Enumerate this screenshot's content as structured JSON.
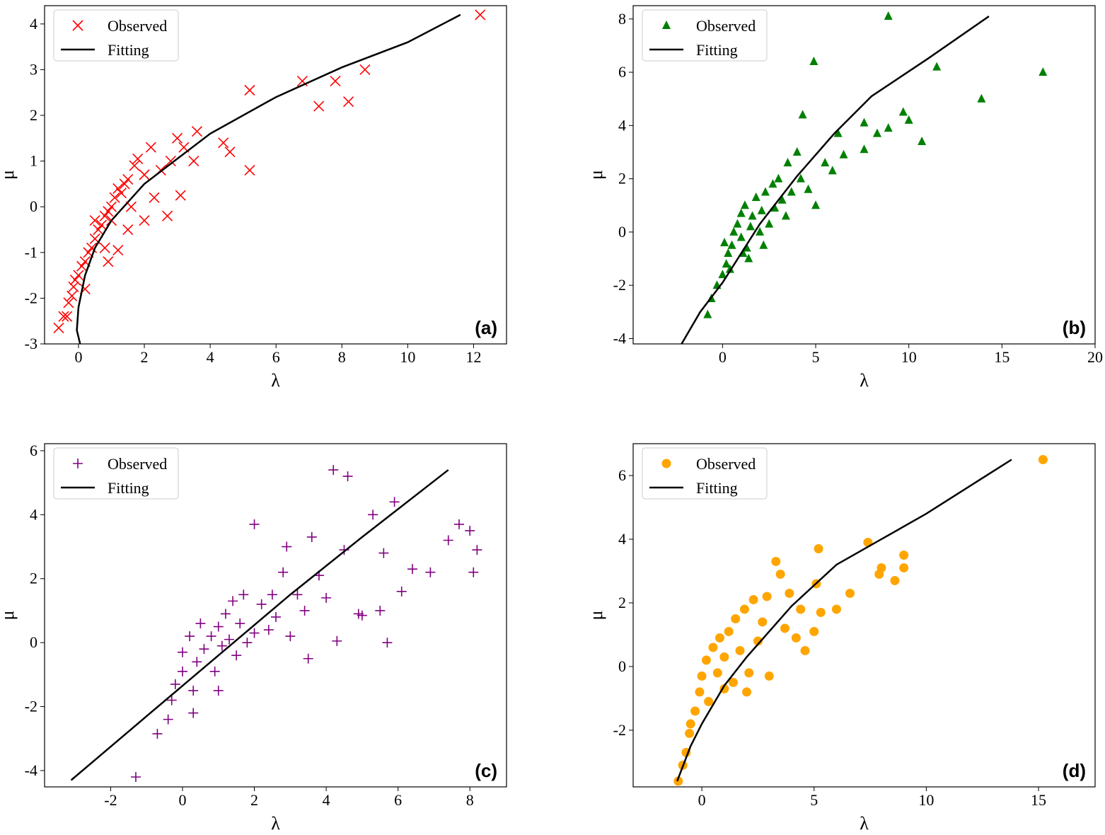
{
  "chart_data": [
    {
      "type": "scatter",
      "panel_label": "(a)",
      "xlabel": "λ",
      "ylabel": "μ",
      "xlim": [
        -1.03,
        13.0
      ],
      "ylim": [
        -3.0,
        4.4
      ],
      "xticks": [
        0,
        2,
        4,
        6,
        8,
        10,
        12
      ],
      "yticks": [
        -3,
        -2,
        -1,
        0,
        1,
        2,
        3,
        4
      ],
      "legend": "upper left",
      "series": [
        {
          "name": "Observed",
          "color": "#ff0000",
          "marker": "x",
          "x": [
            -0.6,
            -0.45,
            -0.35,
            -0.3,
            -0.2,
            -0.15,
            -0.1,
            0,
            0.1,
            0.2,
            0.2,
            0.3,
            0.4,
            0.5,
            0.6,
            0.7,
            0.8,
            0.9,
            1.0,
            1.1,
            1.2,
            1.3,
            1.4,
            1.5,
            1.7,
            1.8,
            2.0,
            2.2,
            2.5,
            2.8,
            3.0,
            3.2,
            3.6,
            0.8,
            1.2,
            1.5,
            2.0,
            2.7,
            3.1,
            2.3,
            1.0,
            0.5,
            0.9,
            1.6,
            3.5,
            4.4,
            4.6,
            5.2,
            5.2,
            6.8,
            7.3,
            7.8,
            8.2,
            8.7,
            12.2
          ],
          "values": [
            -2.65,
            -2.4,
            -2.4,
            -2.1,
            -1.95,
            -1.75,
            -1.6,
            -1.5,
            -1.3,
            -1.8,
            -1.2,
            -1.0,
            -0.9,
            -0.7,
            -0.5,
            -0.4,
            -0.2,
            -0.1,
            0.0,
            0.2,
            0.4,
            0.3,
            0.5,
            0.6,
            0.9,
            1.05,
            0.7,
            1.3,
            0.8,
            1.0,
            1.5,
            1.3,
            1.65,
            -0.9,
            -0.95,
            -0.5,
            -0.3,
            -0.2,
            0.25,
            0.2,
            -0.3,
            -0.3,
            -1.2,
            0.0,
            1.0,
            1.4,
            1.2,
            0.8,
            2.55,
            2.75,
            2.2,
            2.75,
            2.3,
            3.0,
            4.2
          ]
        },
        {
          "name": "Fitting",
          "color": "#000000",
          "marker": "line",
          "x": [
            0.05,
            -0.05,
            0,
            0.2,
            0.5,
            1,
            2,
            3,
            4,
            6,
            8,
            10,
            11.6
          ],
          "values": [
            -3.0,
            -2.7,
            -2.2,
            -1.5,
            -0.9,
            -0.3,
            0.5,
            1.05,
            1.6,
            2.4,
            3.05,
            3.6,
            4.2
          ]
        }
      ]
    },
    {
      "type": "scatter",
      "panel_label": "(b)",
      "xlabel": "λ",
      "ylabel": "μ",
      "xlim": [
        -4.8,
        20.0
      ],
      "ylim": [
        -4.2,
        8.5
      ],
      "xticks": [
        0,
        5,
        10,
        15,
        20
      ],
      "yticks": [
        -4,
        -2,
        0,
        2,
        4,
        6,
        8
      ],
      "legend": "upper left",
      "series": [
        {
          "name": "Observed",
          "color": "#008000",
          "marker": "triangle",
          "x": [
            -0.8,
            -0.6,
            -0.3,
            0,
            0.2,
            0.3,
            0.5,
            0.6,
            0.8,
            1.0,
            1.0,
            1.2,
            1.3,
            1.5,
            1.6,
            1.8,
            2.0,
            2.1,
            2.3,
            2.5,
            2.7,
            2.8,
            3.0,
            3.2,
            3.4,
            3.5,
            3.7,
            4.0,
            4.2,
            4.3,
            4.6,
            4.9,
            5.0,
            5.5,
            5.9,
            6.2,
            6.5,
            7.6,
            7.6,
            8.3,
            8.9,
            8.9,
            9.7,
            10.0,
            10.7,
            11.5,
            13.9,
            17.2,
            0.4,
            1.4,
            2.2,
            0.1,
            1.1
          ],
          "values": [
            -3.1,
            -2.5,
            -2.0,
            -1.6,
            -1.2,
            -0.8,
            -0.5,
            0.0,
            0.3,
            -0.2,
            0.7,
            1.0,
            -0.6,
            0.2,
            0.6,
            1.3,
            0.0,
            0.8,
            1.5,
            0.3,
            1.8,
            0.9,
            2.0,
            1.2,
            0.6,
            2.6,
            1.5,
            3.0,
            2.0,
            4.4,
            1.6,
            6.4,
            1.0,
            2.6,
            2.3,
            3.7,
            2.9,
            3.1,
            4.1,
            3.7,
            3.9,
            8.1,
            4.5,
            4.2,
            3.4,
            6.2,
            5.0,
            6.0,
            -1.4,
            -1.0,
            -0.5,
            -0.4,
            -0.8
          ]
        },
        {
          "name": "Fitting",
          "color": "#000000",
          "marker": "line",
          "x": [
            -2.2,
            -1.2,
            0,
            2,
            4,
            6,
            8,
            11,
            14.3
          ],
          "values": [
            -4.2,
            -3.0,
            -1.9,
            0.3,
            2.1,
            3.7,
            5.1,
            6.5,
            8.1
          ]
        }
      ]
    },
    {
      "type": "scatter",
      "panel_label": "(c)",
      "xlabel": "λ",
      "ylabel": "μ",
      "xlim": [
        -3.84,
        9.02
      ],
      "ylim": [
        -4.51,
        6.22
      ],
      "xticks": [
        -2,
        0,
        2,
        4,
        6,
        8
      ],
      "yticks": [
        -4,
        -2,
        0,
        2,
        4,
        6
      ],
      "legend": "upper left",
      "series": [
        {
          "name": "Observed",
          "color": "#800080",
          "marker": "plus",
          "x": [
            -1.3,
            -0.7,
            -0.4,
            -0.3,
            -0.2,
            0,
            0,
            0.2,
            0.3,
            0.4,
            0.5,
            0.6,
            0.8,
            0.9,
            1.0,
            1.1,
            1.2,
            1.3,
            1.4,
            1.5,
            1.6,
            1.7,
            1.8,
            2.0,
            2.0,
            2.2,
            2.4,
            2.5,
            2.6,
            2.8,
            2.9,
            3.0,
            3.2,
            3.4,
            3.6,
            3.8,
            4.0,
            4.2,
            4.3,
            4.5,
            4.6,
            4.9,
            5.0,
            5.3,
            5.5,
            5.6,
            5.7,
            5.9,
            6.1,
            6.4,
            6.9,
            7.4,
            7.7,
            8.0,
            8.1,
            8.2,
            3.5,
            1.0,
            0.3
          ],
          "values": [
            -4.2,
            -2.85,
            -2.4,
            -1.8,
            -1.3,
            -0.9,
            -0.3,
            0.2,
            -1.5,
            -0.6,
            0.6,
            -0.2,
            0.2,
            -0.9,
            0.5,
            -0.1,
            0.9,
            0.1,
            1.3,
            -0.4,
            0.6,
            1.5,
            0.0,
            0.3,
            3.7,
            1.2,
            0.4,
            1.5,
            0.8,
            2.2,
            3.0,
            0.2,
            1.5,
            1.0,
            3.3,
            2.1,
            1.4,
            5.4,
            0.05,
            2.9,
            5.2,
            0.9,
            0.85,
            4.0,
            1.0,
            2.8,
            0.0,
            4.4,
            1.6,
            2.3,
            2.2,
            3.2,
            3.7,
            3.5,
            2.2,
            2.9,
            -0.5,
            -1.5,
            -2.2
          ]
        },
        {
          "name": "Fitting",
          "color": "#000000",
          "marker": "line",
          "x": [
            -3.1,
            -1,
            1,
            3,
            5,
            7.4
          ],
          "values": [
            -4.3,
            -2.3,
            -0.4,
            1.5,
            3.3,
            5.4
          ]
        }
      ]
    },
    {
      "type": "scatter",
      "panel_label": "(d)",
      "xlabel": "λ",
      "ylabel": "μ",
      "xlim": [
        -3.06,
        17.52
      ],
      "ylim": [
        -3.78,
        7.0
      ],
      "xticks": [
        0,
        5,
        10,
        15
      ],
      "yticks": [
        -2,
        0,
        2,
        4,
        6
      ],
      "legend": "upper left",
      "series": [
        {
          "name": "Observed",
          "color": "#ffa500",
          "marker": "circle",
          "x": [
            -1.05,
            -0.85,
            -0.7,
            -0.55,
            -0.5,
            -0.3,
            -0.1,
            0.0,
            0.2,
            0.3,
            0.5,
            0.7,
            0.8,
            1.0,
            1.2,
            1.4,
            1.5,
            1.7,
            1.9,
            2.1,
            2.3,
            2.5,
            2.7,
            2.9,
            3.0,
            3.3,
            3.5,
            3.7,
            3.9,
            4.2,
            4.4,
            4.6,
            5.0,
            5.1,
            5.2,
            5.3,
            6.0,
            6.6,
            7.4,
            7.9,
            8.0,
            8.6,
            9.0,
            9.0,
            15.2,
            1.0,
            2.0
          ],
          "values": [
            -3.6,
            -3.1,
            -2.7,
            -2.1,
            -1.8,
            -1.4,
            -0.8,
            -0.3,
            0.2,
            -1.1,
            0.6,
            -0.2,
            0.9,
            0.3,
            1.1,
            -0.5,
            1.5,
            0.5,
            1.8,
            -0.2,
            2.1,
            0.8,
            1.4,
            2.2,
            -0.3,
            3.3,
            2.9,
            1.2,
            2.3,
            0.9,
            1.8,
            0.5,
            1.1,
            2.6,
            3.7,
            1.7,
            1.8,
            2.3,
            3.9,
            2.9,
            3.1,
            2.7,
            3.1,
            3.5,
            6.5,
            -0.7,
            -0.8
          ]
        },
        {
          "name": "Fitting",
          "color": "#000000",
          "marker": "line",
          "x": [
            -1.1,
            -0.5,
            0,
            1,
            2,
            4,
            6,
            8,
            10,
            13.8
          ],
          "values": [
            -3.6,
            -2.5,
            -1.8,
            -0.6,
            0.3,
            1.9,
            3.2,
            4.0,
            4.8,
            6.5
          ]
        }
      ]
    }
  ]
}
